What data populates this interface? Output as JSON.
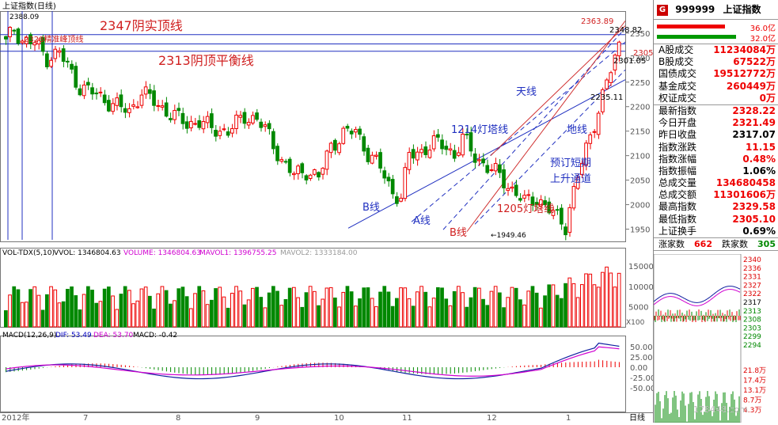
{
  "chart_data": {
    "type": "candlestick",
    "title": "上证指数(日线)",
    "period_label": "日线",
    "price_axis": {
      "ticks": [
        2350,
        2300,
        2250,
        2200,
        2150,
        2100,
        2050,
        2000,
        1950
      ],
      "ylim": [
        1925,
        2395
      ]
    },
    "x_month_labels": [
      "2012年",
      "7",
      "8",
      "9",
      "10",
      "11",
      "12",
      "1"
    ],
    "markers": {
      "high": "2388.09",
      "low": "1949.46",
      "recent_high": "2363.89",
      "level_a": "2348.82",
      "level_b": "2305",
      "level_c": "2301.05",
      "level_d": "2235.11"
    },
    "annotations": [
      "2347阴实顶线",
      "2328精准峰顶线",
      "2313阴顶平衡线",
      "天线",
      "1214灯塔线",
      "地线",
      "预订短期",
      "上升通道",
      "B线",
      "A线",
      "B线",
      "1205灯塔线"
    ],
    "volume_panel": {
      "title": "VOL-TDX(5,10)",
      "vvol_label": "VVOL: 1346804.63",
      "volume_label": "VOLUME: 1346804.63",
      "mavol1_label": "MAVOL1: 1396755.25",
      "mavol2_label": "MAVOL2: 1333184.00",
      "ticks": [
        15000,
        10000,
        5000
      ],
      "unit": "X100"
    },
    "macd_panel": {
      "title": "MACD(12,26,9)",
      "dif_label": "DIF: 53.49",
      "dea_label": "DEA: 53.70",
      "macd_label": "MACD: -0.42",
      "ticks": [
        50.0,
        25.0,
        0.0,
        -25.0,
        -50.0
      ]
    }
  },
  "sidebar": {
    "code": "999999",
    "name": "上证指数",
    "bar_up": "36.0亿",
    "bar_down": "32.0亿",
    "rows1": [
      {
        "label": "A股成交",
        "value": "11234084万",
        "color": "red"
      },
      {
        "label": "B股成交",
        "value": "67522万",
        "color": "red"
      },
      {
        "label": "国债成交",
        "value": "19512772万",
        "color": "red"
      },
      {
        "label": "基金成交",
        "value": "260449万",
        "color": "red"
      },
      {
        "label": "权证成交",
        "value": "0万",
        "color": "red"
      }
    ],
    "rows2": [
      {
        "label": "最新指数",
        "value": "2328.22",
        "color": "red"
      },
      {
        "label": "今日开盘",
        "value": "2321.49",
        "color": "red"
      },
      {
        "label": "昨日收盘",
        "value": "2317.07",
        "color": "blk"
      },
      {
        "label": "指数涨跌",
        "value": "11.15",
        "color": "red"
      },
      {
        "label": "指数涨幅",
        "value": "0.48%",
        "color": "red"
      },
      {
        "label": "指数振幅",
        "value": "1.06%",
        "color": "blk"
      },
      {
        "label": "总成交量",
        "value": "134680458",
        "color": "red"
      },
      {
        "label": "总成交额",
        "value": "11301606万",
        "color": "red"
      },
      {
        "label": "最高指数",
        "value": "2329.58",
        "color": "red"
      },
      {
        "label": "最低指数",
        "value": "2305.10",
        "color": "red"
      },
      {
        "label": "上证换手",
        "value": "0.69%",
        "color": "blk"
      }
    ],
    "rise_label": "涨家数",
    "rise_value": "662",
    "fall_label": "跌家数",
    "fall_value": "305",
    "mini_ticks": [
      "2340",
      "2336",
      "2331",
      "2327",
      "2322",
      "2317",
      "2313",
      "2308",
      "2303",
      "2299",
      "2294"
    ],
    "mini_vol_ticks": [
      "21.8万",
      "17.4万",
      "13.1万",
      "8.7万",
      "4.3万"
    ],
    "watermark": "178448.com"
  }
}
